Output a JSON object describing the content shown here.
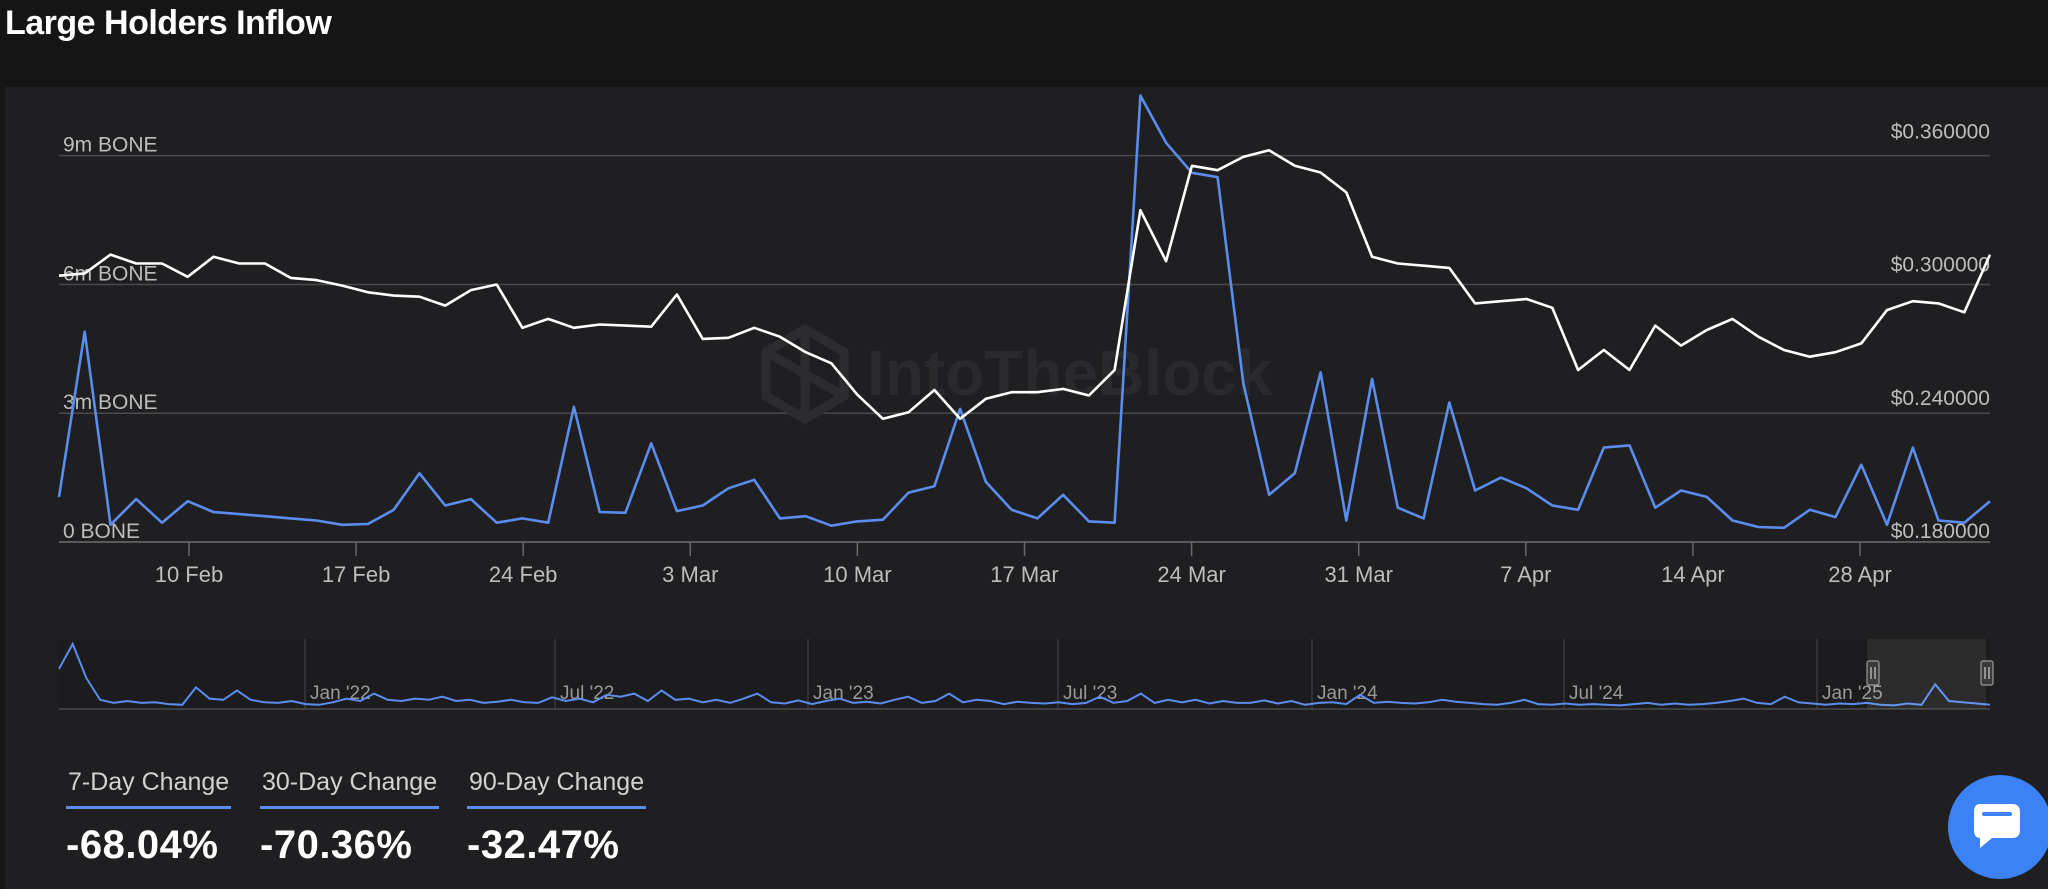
{
  "title": "Large Holders Inflow",
  "watermark": "IntoTheBlock",
  "colors": {
    "inflow": "#5b8def",
    "price": "#ffffff",
    "grid": "#4a4a4c",
    "accent": "#3b82f6"
  },
  "icons": {
    "chat": "chat-bubble-icon",
    "scroll_handle": "scrollbar-handle-icon"
  },
  "chart_data": {
    "type": "line",
    "x_ticks": [
      "10 Feb",
      "17 Feb",
      "24 Feb",
      "3 Mar",
      "10 Mar",
      "17 Mar",
      "24 Mar",
      "31 Mar",
      "7 Apr",
      "14 Apr",
      "28 Apr"
    ],
    "left_axis": {
      "ticks": [
        "0 BONE",
        "3m BONE",
        "6m BONE",
        "9m BONE"
      ],
      "values": [
        0,
        3000000,
        6000000,
        9000000
      ],
      "range": [
        0,
        10600000
      ]
    },
    "right_axis": {
      "ticks": [
        "$0.180000",
        "$0.240000",
        "$0.300000",
        "$0.360000"
      ],
      "values": [
        0.18,
        0.24,
        0.3,
        0.36
      ],
      "range": [
        0.18,
        0.385
      ]
    },
    "x_range": [
      0,
      75
    ],
    "legend": "none",
    "grid": true,
    "series": [
      {
        "axis": "left",
        "color": "#5b8def",
        "values": [
          1050000,
          4900000,
          400000,
          1000000,
          450000,
          950000,
          700000,
          650000,
          600000,
          550000,
          500000,
          400000,
          420000,
          750000,
          1600000,
          850000,
          1000000,
          450000,
          550000,
          450000,
          3150000,
          700000,
          680000,
          2300000,
          720000,
          850000,
          1250000,
          1450000,
          550000,
          600000,
          380000,
          480000,
          520000,
          1150000,
          1300000,
          3100000,
          1400000,
          750000,
          550000,
          1100000,
          480000,
          450000,
          10400000,
          9300000,
          8600000,
          8500000,
          3700000,
          1100000,
          1600000,
          3950000,
          500000,
          3800000,
          800000,
          550000,
          3250000,
          1200000,
          1500000,
          1250000,
          850000,
          750000,
          2200000,
          2250000,
          800000,
          1200000,
          1050000,
          500000,
          350000,
          330000,
          750000,
          580000,
          1800000,
          400000,
          2200000,
          500000,
          450000,
          950000
        ]
      },
      {
        "axis": "right",
        "color": "#ffffff",
        "values": [
          0.3,
          0.301,
          0.3095,
          0.3055,
          0.3055,
          0.2995,
          0.3085,
          0.3055,
          0.3055,
          0.299,
          0.298,
          0.2955,
          0.2925,
          0.291,
          0.2905,
          0.2865,
          0.2935,
          0.296,
          0.2765,
          0.2805,
          0.2765,
          0.278,
          0.2775,
          0.277,
          0.2915,
          0.2715,
          0.272,
          0.2765,
          0.2725,
          0.2655,
          0.2605,
          0.2465,
          0.2355,
          0.2385,
          0.2485,
          0.2355,
          0.2445,
          0.2475,
          0.2475,
          0.249,
          0.246,
          0.2575,
          0.3295,
          0.3065,
          0.3495,
          0.3475,
          0.3535,
          0.3565,
          0.3495,
          0.3465,
          0.3375,
          0.3085,
          0.3055,
          0.3045,
          0.3035,
          0.2875,
          0.2885,
          0.2895,
          0.2855,
          0.2575,
          0.2665,
          0.2575,
          0.2775,
          0.2685,
          0.2755,
          0.2805,
          0.2725,
          0.2665,
          0.2635,
          0.2655,
          0.2695,
          0.2845,
          0.2885,
          0.2875,
          0.2835,
          0.3095
        ]
      }
    ],
    "navigator": {
      "ticks": [
        "Jan '22",
        "Jul '22",
        "Jan '23",
        "Jul '23",
        "Jan '24",
        "Jul '24",
        "Jan '25"
      ],
      "values": [
        0.6,
        1.0,
        0.45,
        0.1,
        0.05,
        0.08,
        0.05,
        0.06,
        0.03,
        0.02,
        0.3,
        0.12,
        0.1,
        0.25,
        0.1,
        0.06,
        0.05,
        0.08,
        0.03,
        0.02,
        0.06,
        0.12,
        0.08,
        0.2,
        0.1,
        0.08,
        0.12,
        0.1,
        0.15,
        0.08,
        0.1,
        0.05,
        0.07,
        0.1,
        0.06,
        0.05,
        0.14,
        0.08,
        0.12,
        0.06,
        0.18,
        0.15,
        0.2,
        0.08,
        0.25,
        0.1,
        0.12,
        0.06,
        0.1,
        0.05,
        0.12,
        0.2,
        0.06,
        0.04,
        0.09,
        0.03,
        0.08,
        0.12,
        0.05,
        0.07,
        0.04,
        0.1,
        0.15,
        0.05,
        0.08,
        0.2,
        0.06,
        0.1,
        0.08,
        0.03,
        0.07,
        0.05,
        0.04,
        0.06,
        0.03,
        0.05,
        0.15,
        0.05,
        0.08,
        0.2,
        0.05,
        0.1,
        0.06,
        0.1,
        0.04,
        0.08,
        0.05,
        0.05,
        0.09,
        0.04,
        0.08,
        0.02,
        0.05,
        0.06,
        0.03,
        0.18,
        0.05,
        0.07,
        0.05,
        0.04,
        0.06,
        0.1,
        0.07,
        0.05,
        0.03,
        0.02,
        0.05,
        0.1,
        0.03,
        0.02,
        0.04,
        0.02,
        0.03,
        0.02,
        0.01,
        0.03,
        0.05,
        0.02,
        0.04,
        0.02,
        0.03,
        0.05,
        0.08,
        0.12,
        0.05,
        0.03,
        0.15,
        0.06,
        0.04,
        0.02,
        0.04,
        0.03,
        0.05,
        0.02,
        0.01,
        0.04,
        0.02,
        0.35,
        0.08,
        0.06,
        0.04,
        0.02
      ]
    }
  },
  "stats": [
    {
      "label": "7-Day Change",
      "value": "-68.04%"
    },
    {
      "label": "30-Day Change",
      "value": "-70.36%"
    },
    {
      "label": "90-Day Change",
      "value": "-32.47%"
    }
  ]
}
